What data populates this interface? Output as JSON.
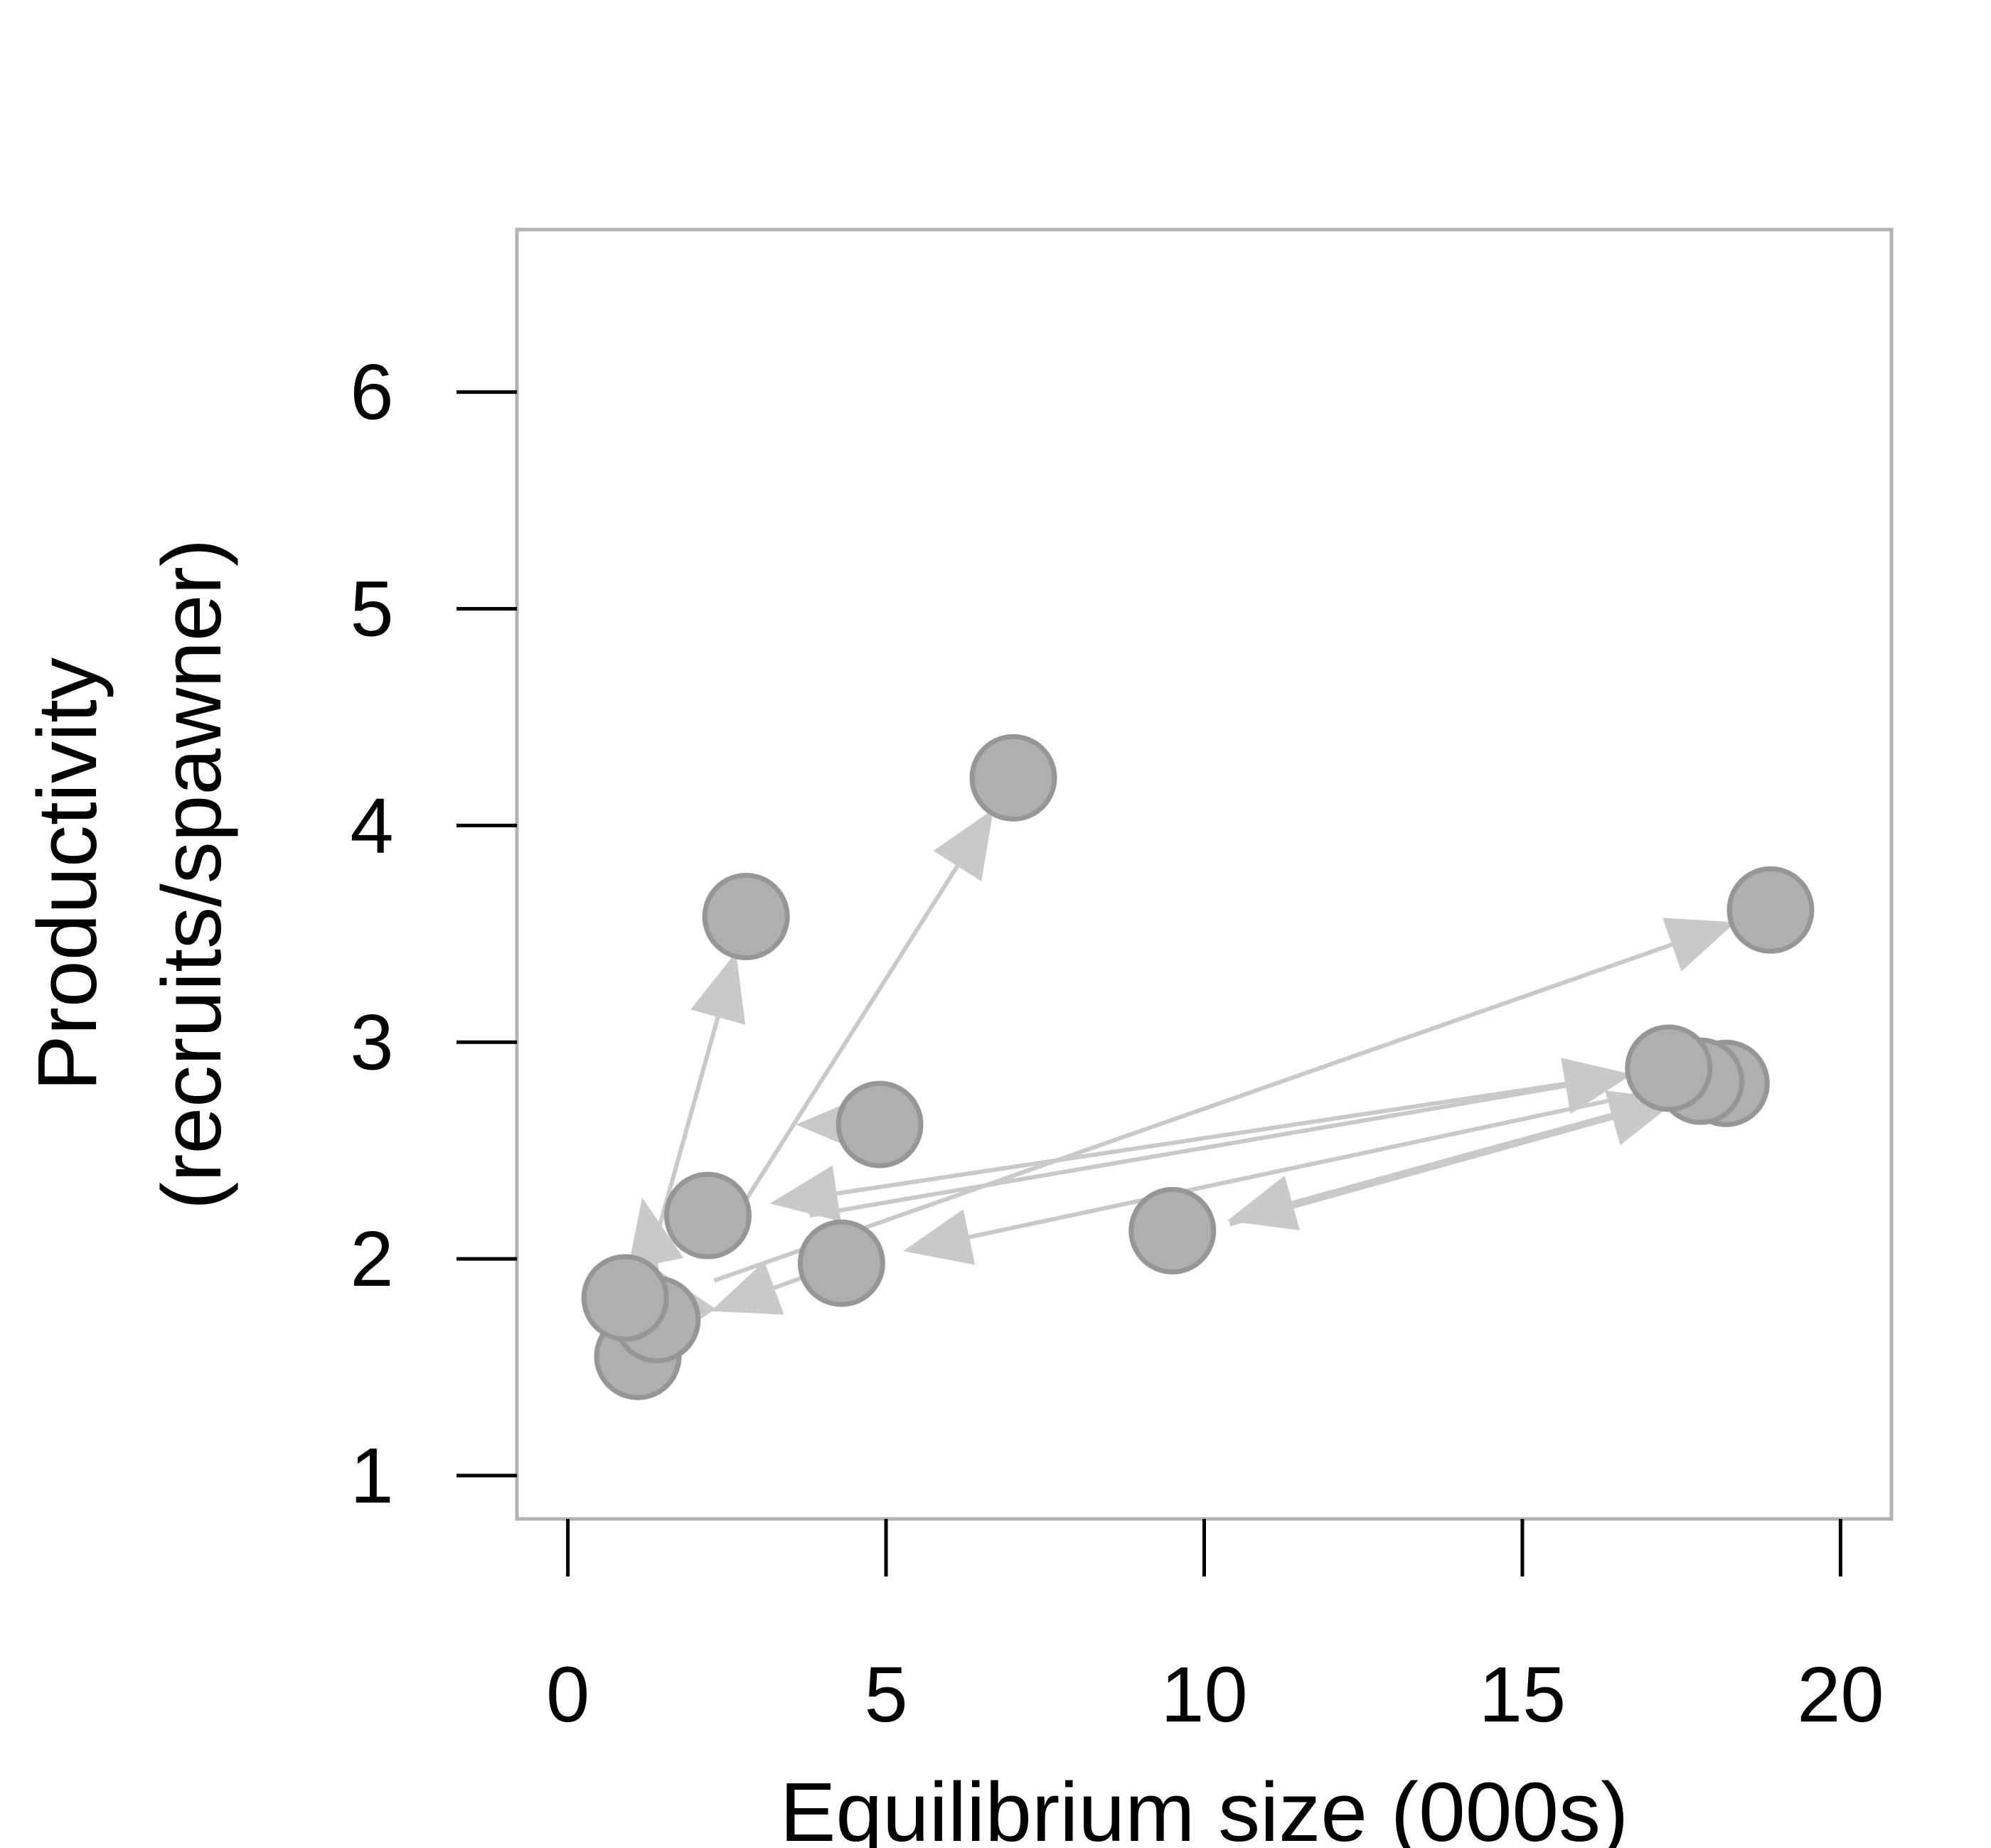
{
  "chart_data": {
    "type": "scatter",
    "title": "",
    "xlabel": "Equilibrium size (000s)",
    "ylabel_lines": [
      "Productivity",
      "(recruits/spawner)"
    ],
    "xlim": [
      -0.8,
      20.8
    ],
    "ylim": [
      0.8,
      6.75
    ],
    "xticks": [
      0,
      5,
      10,
      15,
      20
    ],
    "yticks": [
      1,
      2,
      3,
      4,
      5,
      6
    ],
    "grid": false,
    "legend": "none",
    "colors": {
      "point_fill": "#afafaf",
      "point_stroke": "#969696",
      "arrow": "#c9c9c9",
      "frame": "#b3b3b3",
      "ticks": "#000000"
    },
    "points": [
      {
        "x": 1.1,
        "y": 1.55
      },
      {
        "x": 1.4,
        "y": 1.72
      },
      {
        "x": 0.9,
        "y": 1.82
      },
      {
        "x": 2.2,
        "y": 2.2
      },
      {
        "x": 2.8,
        "y": 3.58
      },
      {
        "x": 4.9,
        "y": 2.62
      },
      {
        "x": 7.0,
        "y": 4.22
      },
      {
        "x": 4.3,
        "y": 1.98
      },
      {
        "x": 9.5,
        "y": 2.13
      },
      {
        "x": 18.2,
        "y": 2.81
      },
      {
        "x": 17.8,
        "y": 2.82
      },
      {
        "x": 17.3,
        "y": 2.88
      },
      {
        "x": 18.9,
        "y": 3.61
      }
    ],
    "arrows": [
      {
        "from": [
          1.25,
          1.95
        ],
        "to": [
          2.8,
          3.58
        ]
      },
      {
        "from": [
          2.75,
          2.25
        ],
        "to": [
          7.0,
          4.22
        ]
      },
      {
        "from": [
          4.9,
          2.62
        ],
        "to": [
          3.0,
          2.62
        ]
      },
      {
        "from": [
          1.4,
          1.95
        ],
        "to": [
          1.05,
          2.45
        ]
      },
      {
        "from": [
          1.9,
          1.72
        ],
        "to": [
          1.05,
          2.1
        ]
      },
      {
        "from": [
          4.3,
          1.98
        ],
        "to": [
          1.7,
          1.7
        ]
      },
      {
        "from": [
          17.3,
          2.88
        ],
        "to": [
          2.6,
          2.23
        ]
      },
      {
        "from": [
          2.3,
          1.9
        ],
        "to": [
          18.9,
          3.61
        ]
      },
      {
        "from": [
          17.8,
          2.82
        ],
        "to": [
          4.7,
          2.0
        ]
      },
      {
        "from": [
          18.2,
          2.81
        ],
        "to": [
          9.8,
          2.13
        ]
      },
      {
        "from": [
          3.8,
          2.2
        ],
        "to": [
          17.3,
          2.88
        ]
      },
      {
        "from": [
          10.4,
          2.16
        ],
        "to": [
          18.0,
          2.78
        ]
      }
    ]
  }
}
